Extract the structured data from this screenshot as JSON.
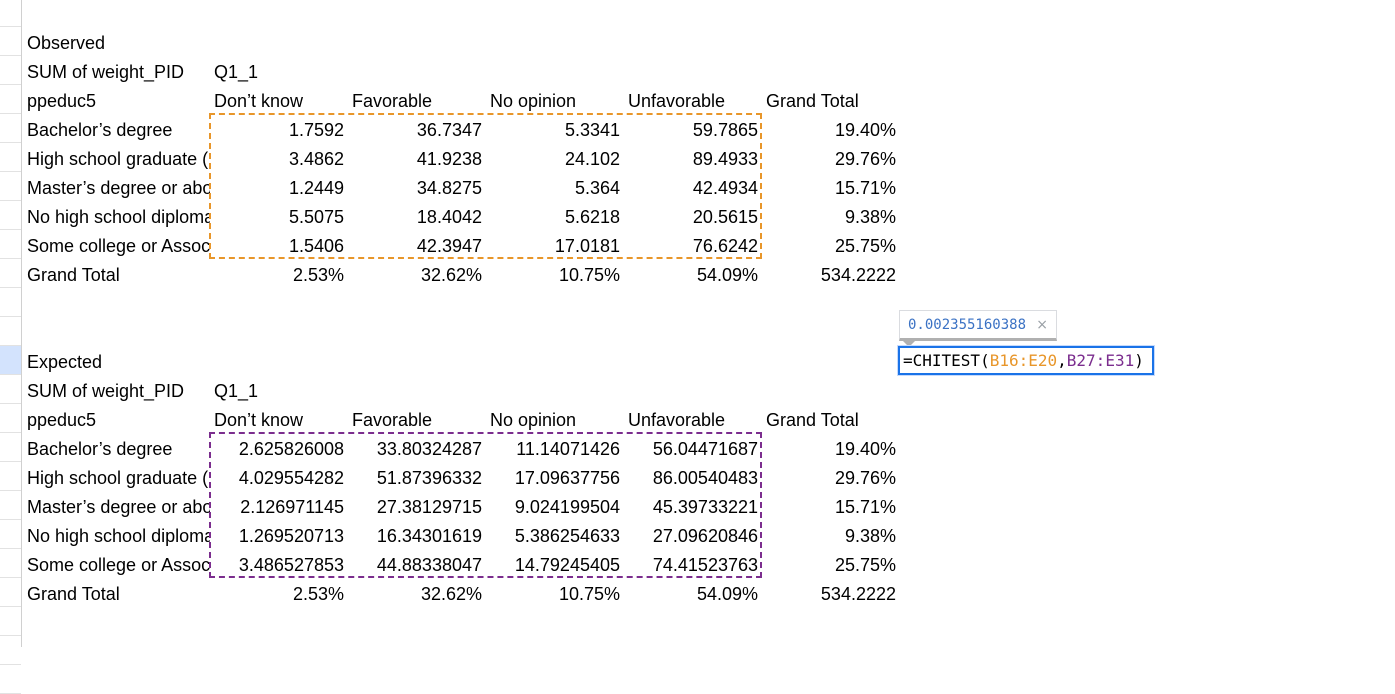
{
  "observed": {
    "section_label": "Observed",
    "header_row": [
      "SUM of weight_PID",
      "Q1_1"
    ],
    "columns": [
      "ppeduc5",
      "Don’t know",
      "Favorable",
      "No opinion",
      "Unfavorable",
      "Grand Total"
    ],
    "rows": [
      [
        "Bachelor’s degree",
        "1.7592",
        "36.7347",
        "5.3341",
        "59.7865",
        "19.40%"
      ],
      [
        "High school graduate (",
        "3.4862",
        "41.9238",
        "24.102",
        "89.4933",
        "29.76%"
      ],
      [
        "Master’s degree or abo",
        "1.2449",
        "34.8275",
        "5.364",
        "42.4934",
        "15.71%"
      ],
      [
        "No high school diploma",
        "5.5075",
        "18.4042",
        "5.6218",
        "20.5615",
        "9.38%"
      ],
      [
        "Some college or Assoc",
        "1.5406",
        "42.3947",
        "17.0181",
        "76.6242",
        "25.75%"
      ]
    ],
    "grand_total": [
      "Grand Total",
      "2.53%",
      "32.62%",
      "10.75%",
      "54.09%",
      "534.2222"
    ]
  },
  "expected": {
    "section_label": "Expected",
    "header_row": [
      "SUM of weight_PID",
      "Q1_1"
    ],
    "columns": [
      "ppeduc5",
      "Don’t know",
      "Favorable",
      "No opinion",
      "Unfavorable",
      "Grand Total"
    ],
    "rows": [
      [
        "Bachelor’s degree",
        "2.625826008",
        "33.80324287",
        "11.14071426",
        "56.04471687",
        "19.40%"
      ],
      [
        "High school graduate (",
        "4.029554282",
        "51.87396332",
        "17.09637756",
        "86.00540483",
        "29.76%"
      ],
      [
        "Master’s degree or abo",
        "2.126971145",
        "27.38129715",
        "9.024199504",
        "45.39733221",
        "15.71%"
      ],
      [
        "No high school diploma",
        "1.269520713",
        "16.34301619",
        "5.386254633",
        "27.09620846",
        "9.38%"
      ],
      [
        "Some college or Assoc",
        "3.486527853",
        "44.88338047",
        "14.79245405",
        "74.41523763",
        "25.75%"
      ]
    ],
    "grand_total": [
      "Grand Total",
      "2.53%",
      "32.62%",
      "10.75%",
      "54.09%",
      "534.2222"
    ]
  },
  "formula": {
    "preview_value": "0.002355160388",
    "close_glyph": "×",
    "prefix": "=CHITEST(",
    "range1": "B16:E20",
    "separator": ",",
    "range2": "B27:E31",
    "suffix": ")"
  },
  "colors": {
    "range1": "#e8962a",
    "range2": "#7b2d8e",
    "active_cell_border": "#1a73e8",
    "preview_text": "#3b72c4"
  }
}
